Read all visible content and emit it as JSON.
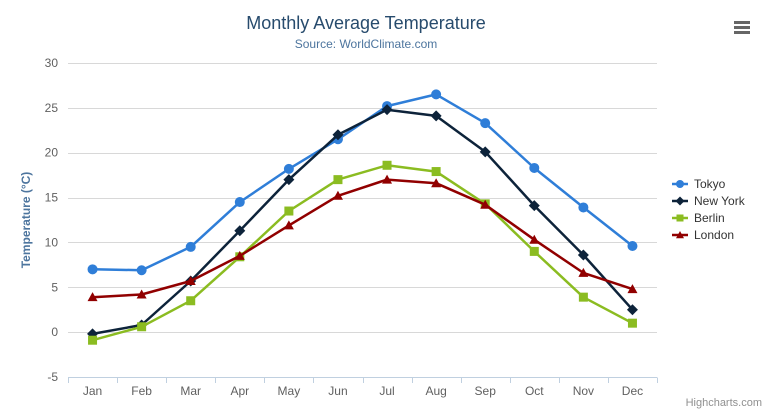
{
  "chart_data": {
    "type": "line",
    "title": "Monthly Average Temperature",
    "subtitle": "Source: WorldClimate.com",
    "xlabel": "",
    "ylabel": "Temperature (°C)",
    "categories": [
      "Jan",
      "Feb",
      "Mar",
      "Apr",
      "May",
      "Jun",
      "Jul",
      "Aug",
      "Sep",
      "Oct",
      "Nov",
      "Dec"
    ],
    "ylim": [
      -5,
      30
    ],
    "y_ticks": [
      -5,
      0,
      5,
      10,
      15,
      20,
      25,
      30
    ],
    "grid": true,
    "legend_position": "right",
    "series": [
      {
        "name": "Tokyo",
        "marker": "circle",
        "color": "#2f7ed8",
        "values": [
          7.0,
          6.9,
          9.5,
          14.5,
          18.2,
          21.5,
          25.2,
          26.5,
          23.3,
          18.3,
          13.9,
          9.6
        ]
      },
      {
        "name": "New York",
        "marker": "diamond",
        "color": "#0d233a",
        "values": [
          -0.2,
          0.8,
          5.7,
          11.3,
          17.0,
          22.0,
          24.8,
          24.1,
          20.1,
          14.1,
          8.6,
          2.5
        ]
      },
      {
        "name": "Berlin",
        "marker": "square",
        "color": "#8bbc21",
        "values": [
          -0.9,
          0.6,
          3.5,
          8.4,
          13.5,
          17.0,
          18.6,
          17.9,
          14.3,
          9.0,
          3.9,
          1.0
        ]
      },
      {
        "name": "London",
        "marker": "triangle",
        "color": "#910000",
        "values": [
          3.9,
          4.2,
          5.7,
          8.5,
          11.9,
          15.2,
          17.0,
          16.6,
          14.2,
          10.3,
          6.6,
          4.8
        ]
      }
    ]
  },
  "theme": {
    "title_color": "#274b6d",
    "subtitle_color": "#4d759e",
    "axis_title_color": "#4d759e",
    "axis_label_color": "#606060",
    "gridline_color": "#d8d8d8",
    "axis_line_color": "#c0d0e0",
    "legend_text_color": "#333333",
    "credits_color": "#909090"
  },
  "export_menu": {
    "icon": "hamburger-menu"
  },
  "credits": {
    "label": "Highcharts.com"
  }
}
